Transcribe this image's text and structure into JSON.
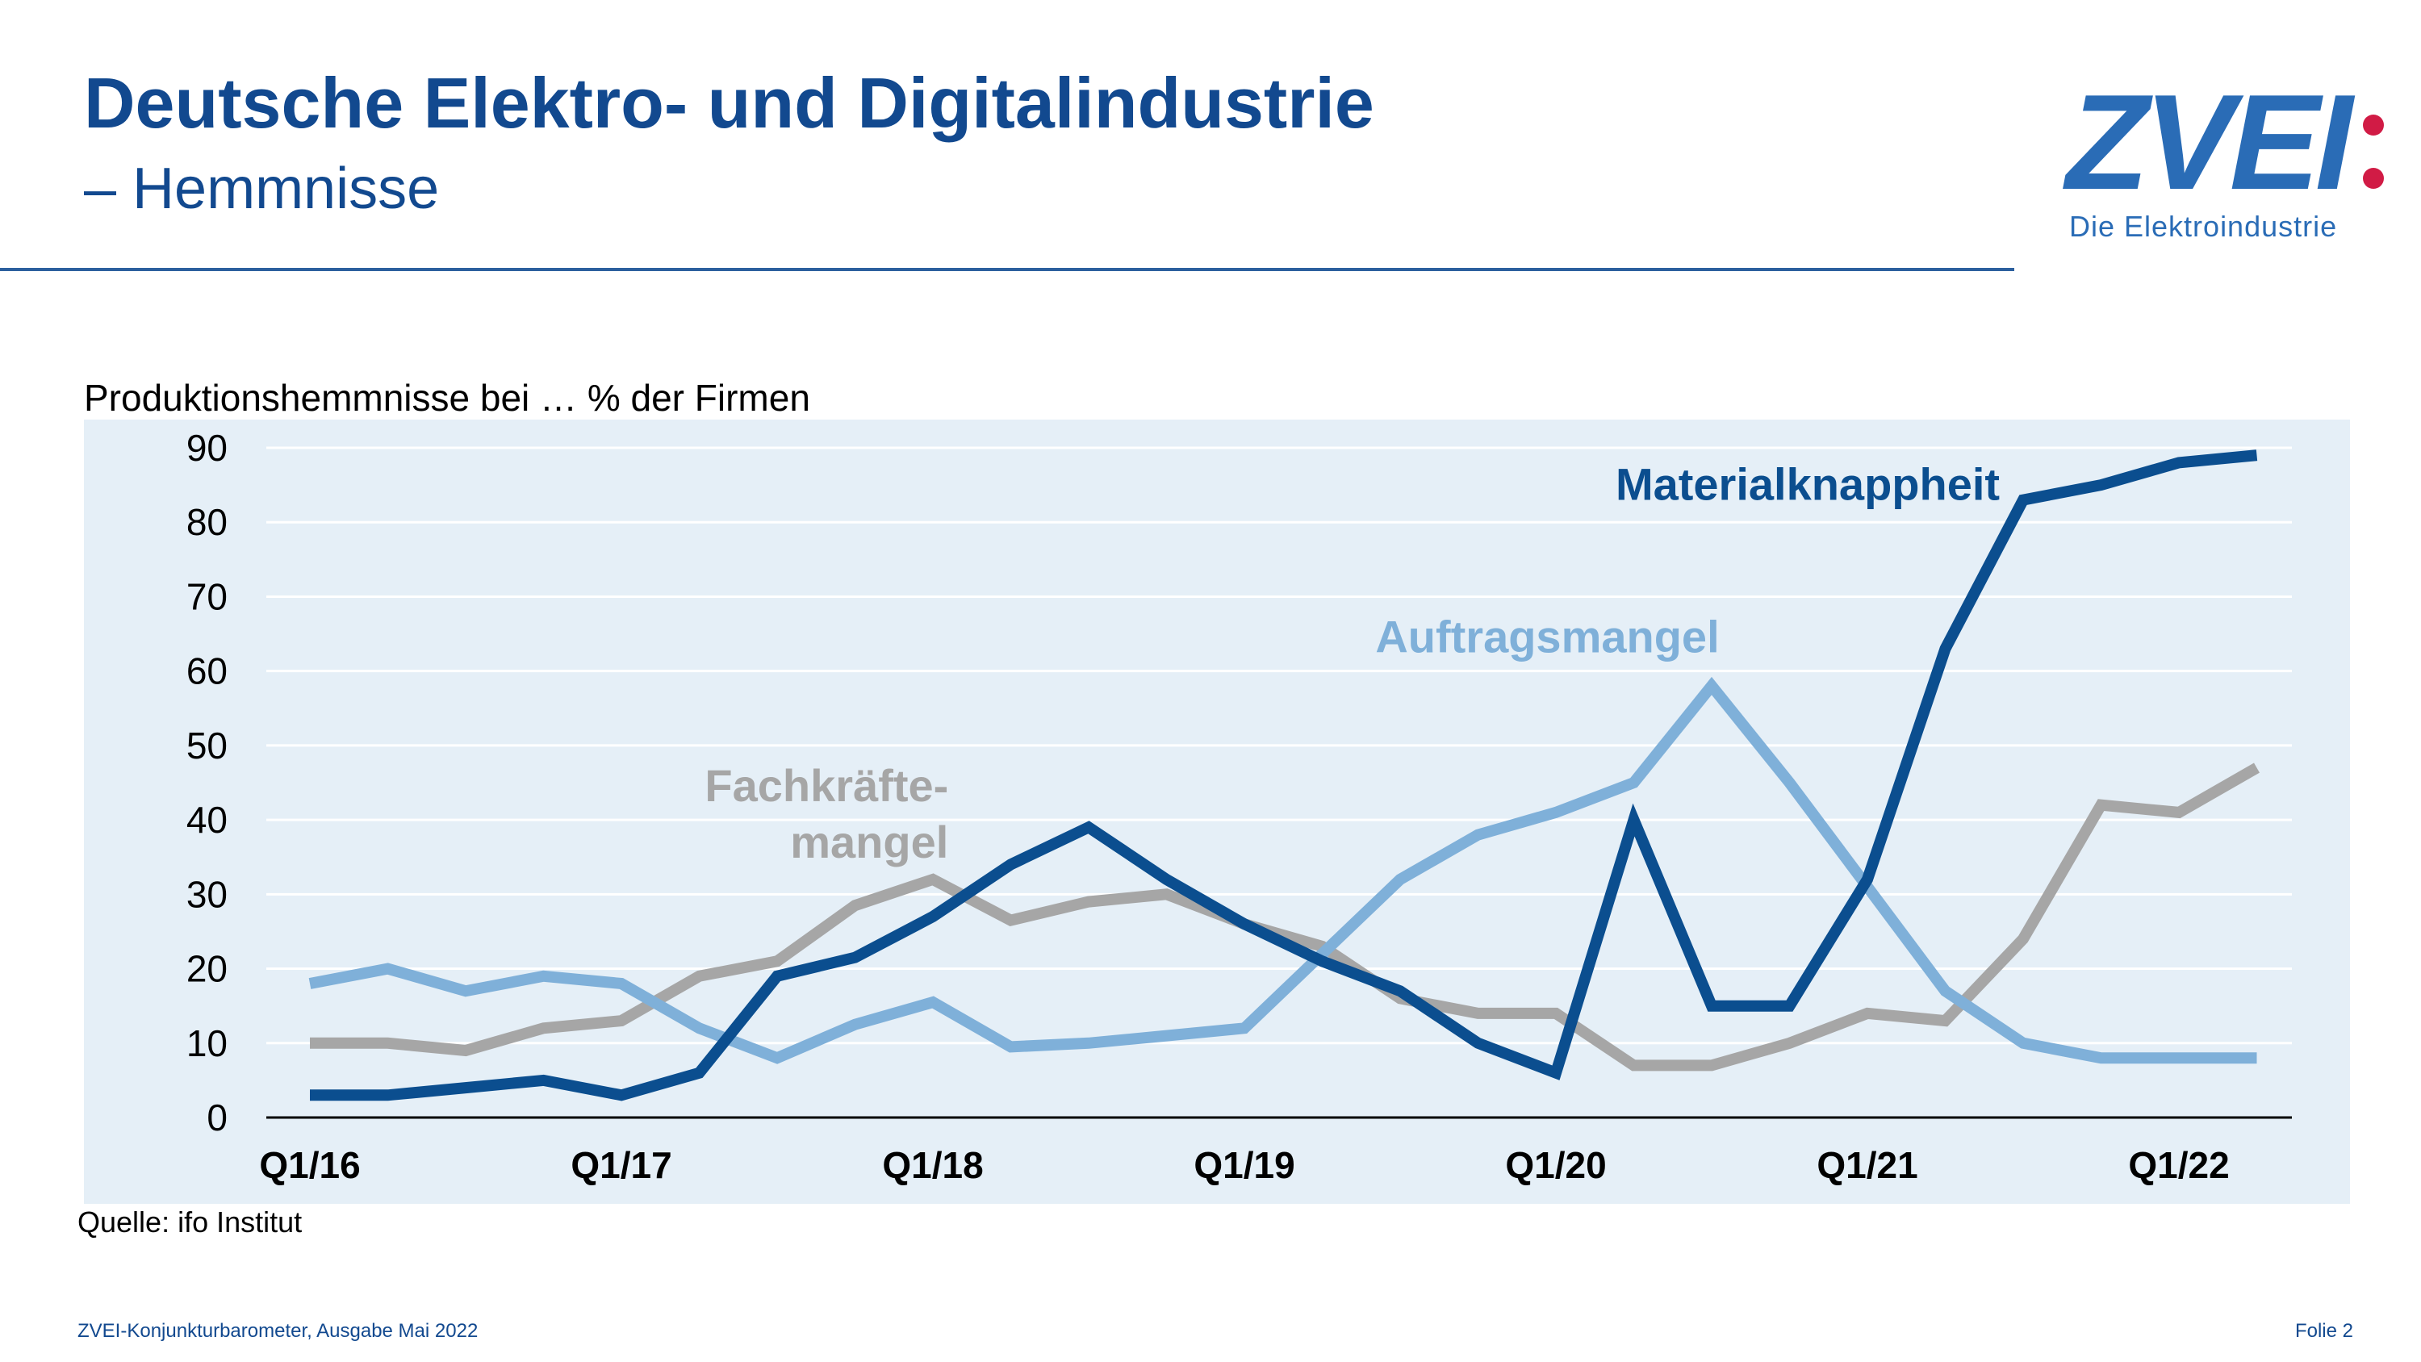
{
  "header": {
    "title": "Deutsche Elektro- und Digitalindustrie",
    "subtitle": "– Hemmnisse"
  },
  "logo": {
    "word": "ZVEI",
    "tagline": "Die Elektroindustrie",
    "colors": {
      "word": "#2a6cb6",
      "dots": "#d11b45"
    }
  },
  "chart_caption": "Produktionshemmnisse bei … % der Firmen",
  "source": "Quelle: ifo Institut",
  "footer": {
    "left": "ZVEI-Konjunkturbarometer, Ausgabe Mai 2022",
    "right": "Folie 2"
  },
  "colors": {
    "title": "#12498f",
    "plot_background": "#e5eff7",
    "gridline": "#ffffff"
  },
  "chart_data": {
    "type": "line",
    "ylim": [
      0,
      90
    ],
    "y_ticks": [
      0,
      10,
      20,
      30,
      40,
      50,
      60,
      70,
      80,
      90
    ],
    "x_tick_labels": [
      {
        "label": "Q1/16",
        "index": 0
      },
      {
        "label": "Q1/17",
        "index": 4
      },
      {
        "label": "Q1/18",
        "index": 8
      },
      {
        "label": "Q1/19",
        "index": 12
      },
      {
        "label": "Q1/20",
        "index": 16
      },
      {
        "label": "Q1/21",
        "index": 20
      },
      {
        "label": "Q1/22",
        "index": 24
      }
    ],
    "grid": true,
    "legend": "inline labels",
    "series": [
      {
        "name": "Materialknappheit",
        "label_lines": [
          "Materialknappheit"
        ],
        "label_anchor": "end",
        "label_at": [
          21.7,
          83
        ],
        "color": "#0b4e8f",
        "values": [
          3,
          3,
          4,
          5,
          3,
          6,
          19,
          21.5,
          27,
          34,
          39,
          32,
          26,
          21,
          17,
          10,
          6,
          40,
          15,
          15,
          32,
          63,
          83,
          85,
          88,
          89
        ]
      },
      {
        "name": "Auftragsmangel",
        "label_lines": [
          "Auftragsmangel"
        ],
        "label_anchor": "end",
        "label_at": [
          18.1,
          62.5
        ],
        "color": "#7fb0d9",
        "values": [
          18,
          20,
          17,
          19,
          18,
          12,
          8,
          12.5,
          15.5,
          9.5,
          10,
          11,
          12,
          22,
          32,
          38,
          41,
          45,
          58,
          45,
          31,
          17,
          10,
          8,
          8,
          8
        ]
      },
      {
        "name": "Fachkräfte-mangel",
        "label_lines": [
          "Fachkräfte-",
          "mangel"
        ],
        "label_anchor": "end",
        "label_at": [
          8.2,
          42.5
        ],
        "color": "#a6a6a6",
        "values": [
          10,
          10,
          9,
          12,
          13,
          19,
          21,
          28.5,
          32,
          26.5,
          29,
          30,
          26,
          23,
          16,
          14,
          14,
          7,
          7,
          10,
          14,
          13,
          24,
          42,
          41,
          47
        ]
      }
    ]
  }
}
